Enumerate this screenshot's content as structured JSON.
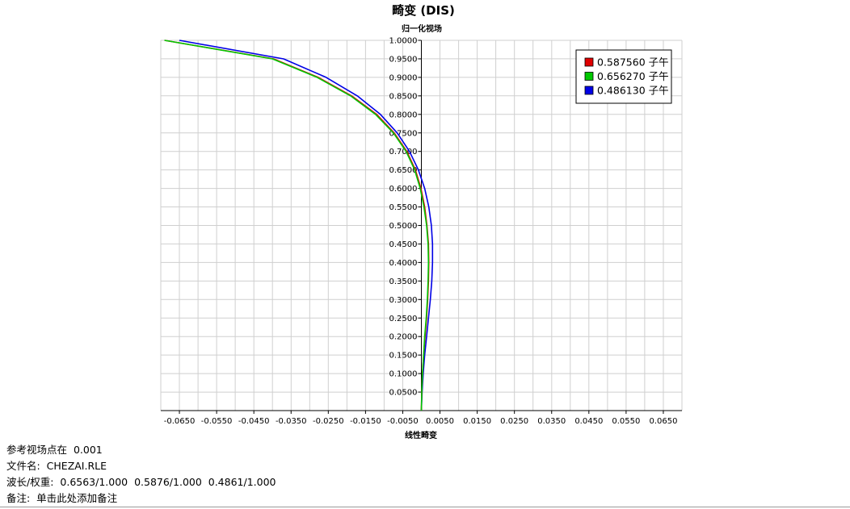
{
  "chart_data": {
    "type": "line",
    "title": "畸变 (DIS)",
    "ylabel": "归一化视场",
    "xlabel": "线性畸变",
    "xlim": [
      -0.07,
      0.07
    ],
    "ylim": [
      0,
      1.0
    ],
    "x_ticks": [
      "-0.0650",
      "-0.0550",
      "-0.0450",
      "-0.0350",
      "-0.0250",
      "-0.0150",
      "-0.0050",
      "0.0050",
      "0.0150",
      "0.0250",
      "0.0350",
      "0.0450",
      "0.0550",
      "0.0650"
    ],
    "x_tick_values": [
      -0.065,
      -0.055,
      -0.045,
      -0.035,
      -0.025,
      -0.015,
      -0.005,
      0.005,
      0.015,
      0.025,
      0.035,
      0.045,
      0.055,
      0.065
    ],
    "y_ticks": [
      "0.0500",
      "0.1000",
      "0.1500",
      "0.2000",
      "0.2500",
      "0.3000",
      "0.3500",
      "0.4000",
      "0.4500",
      "0.5000",
      "0.5500",
      "0.6000",
      "0.6500",
      "0.7000",
      "0.7500",
      "0.8000",
      "0.8500",
      "0.9000",
      "0.9500",
      "1.0000"
    ],
    "y_tick_values": [
      0.05,
      0.1,
      0.15,
      0.2,
      0.25,
      0.3,
      0.35,
      0.4,
      0.45,
      0.5,
      0.55,
      0.6,
      0.65,
      0.7,
      0.75,
      0.8,
      0.85,
      0.9,
      0.95,
      1.0
    ],
    "grid": true,
    "legend_position": "top-right",
    "series": [
      {
        "name": "0.587560 子午",
        "color": "#e00000",
        "points": [
          [
            0.0,
            0.0
          ],
          [
            0.0001,
            0.05
          ],
          [
            0.0003,
            0.1
          ],
          [
            0.0006,
            0.15
          ],
          [
            0.001,
            0.2
          ],
          [
            0.0014,
            0.25
          ],
          [
            0.0017,
            0.3
          ],
          [
            0.0019,
            0.35
          ],
          [
            0.002,
            0.4
          ],
          [
            0.0019,
            0.45
          ],
          [
            0.0015,
            0.5
          ],
          [
            0.0009,
            0.55
          ],
          [
            -0.0001,
            0.6
          ],
          [
            -0.0016,
            0.65
          ],
          [
            -0.0039,
            0.7
          ],
          [
            -0.0073,
            0.75
          ],
          [
            -0.012,
            0.8
          ],
          [
            -0.0187,
            0.85
          ],
          [
            -0.0277,
            0.9
          ],
          [
            -0.0397,
            0.95
          ],
          [
            -0.069,
            1.0
          ]
        ]
      },
      {
        "name": "0.656270 子午",
        "color": "#00c800",
        "points": [
          [
            0.0,
            0.0
          ],
          [
            0.0001,
            0.05
          ],
          [
            0.0003,
            0.1
          ],
          [
            0.0006,
            0.15
          ],
          [
            0.0009,
            0.2
          ],
          [
            0.0013,
            0.25
          ],
          [
            0.0016,
            0.3
          ],
          [
            0.0018,
            0.35
          ],
          [
            0.0019,
            0.4
          ],
          [
            0.0018,
            0.45
          ],
          [
            0.0014,
            0.5
          ],
          [
            0.0007,
            0.55
          ],
          [
            -0.0003,
            0.6
          ],
          [
            -0.0018,
            0.65
          ],
          [
            -0.0041,
            0.7
          ],
          [
            -0.0075,
            0.75
          ],
          [
            -0.0123,
            0.8
          ],
          [
            -0.019,
            0.85
          ],
          [
            -0.028,
            0.9
          ],
          [
            -0.04,
            0.95
          ],
          [
            -0.069,
            1.0
          ]
        ]
      },
      {
        "name": "0.486130 子午",
        "color": "#0000e6",
        "points": [
          [
            0.0,
            0.0
          ],
          [
            0.0002,
            0.05
          ],
          [
            0.0005,
            0.1
          ],
          [
            0.0009,
            0.15
          ],
          [
            0.0014,
            0.2
          ],
          [
            0.0019,
            0.25
          ],
          [
            0.0024,
            0.3
          ],
          [
            0.0028,
            0.35
          ],
          [
            0.003,
            0.4
          ],
          [
            0.003,
            0.45
          ],
          [
            0.0027,
            0.5
          ],
          [
            0.002,
            0.55
          ],
          [
            0.0009,
            0.6
          ],
          [
            -0.0008,
            0.65
          ],
          [
            -0.0032,
            0.7
          ],
          [
            -0.0065,
            0.75
          ],
          [
            -0.011,
            0.8
          ],
          [
            -0.0172,
            0.85
          ],
          [
            -0.0256,
            0.9
          ],
          [
            -0.037,
            0.95
          ],
          [
            -0.065,
            1.0
          ]
        ]
      }
    ]
  },
  "footer": {
    "ref_field_label": "参考视场点在",
    "ref_field_value": "0.001",
    "file_label": "文件名:",
    "file_value": "CHEZAI.RLE",
    "wave_label": "波长/权重:",
    "wave_value": "0.6563/1.000  0.5876/1.000  0.4861/1.000",
    "note_label": "备注:",
    "note_value": "单击此处添加备注"
  }
}
